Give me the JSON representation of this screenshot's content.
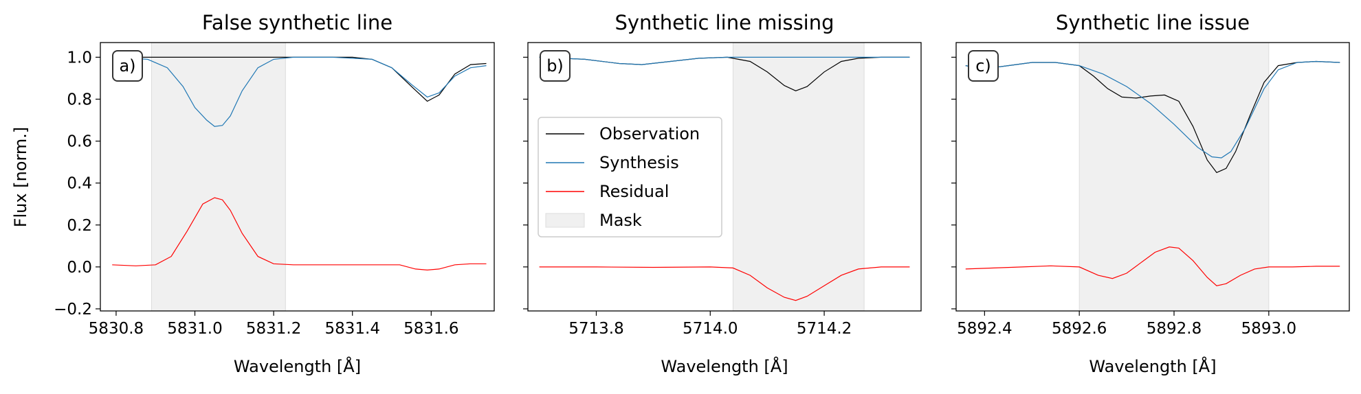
{
  "figure": {
    "ylabel": "Flux [norm.]",
    "legend": {
      "placement": "inside panel b, left-center",
      "entries": [
        {
          "label": "Observation",
          "color": "#000000",
          "kind": "line"
        },
        {
          "label": "Synthesis",
          "color": "#1f77b4",
          "kind": "line"
        },
        {
          "label": "Residual",
          "color": "#ff0000",
          "kind": "line"
        },
        {
          "label": "Mask",
          "color": "#f0f0f0",
          "kind": "patch"
        }
      ]
    }
  },
  "chart_data": [
    {
      "type": "line",
      "panel_label": "a)",
      "title": "False synthetic line",
      "xlabel": "Wavelength [Å]",
      "ylabel": "Flux [norm.]",
      "xlim": [
        5830.76,
        5831.76
      ],
      "ylim": [
        -0.21,
        1.07
      ],
      "xticks": [
        5830.8,
        5831.0,
        5831.2,
        5831.4,
        5831.6
      ],
      "xtick_labels": [
        "5830.8",
        "5831.0",
        "5831.2",
        "5831.4",
        "5831.6"
      ],
      "yticks": [
        -0.2,
        0.0,
        0.2,
        0.4,
        0.6,
        0.8,
        1.0
      ],
      "ytick_labels": [
        "−0.2",
        "0.0",
        "0.2",
        "0.4",
        "0.6",
        "0.8",
        "1.0"
      ],
      "mask": [
        5830.89,
        5831.23
      ],
      "grid": false,
      "series": [
        {
          "name": "Observation",
          "color": "#000000",
          "x": [
            5830.8,
            5830.9,
            5831.0,
            5831.1,
            5831.2,
            5831.3,
            5831.4,
            5831.45,
            5831.5,
            5831.55,
            5831.59,
            5831.62,
            5831.66,
            5831.7,
            5831.74
          ],
          "y": [
            1.0,
            1.0,
            1.0,
            1.0,
            1.0,
            1.0,
            1.0,
            0.99,
            0.95,
            0.86,
            0.79,
            0.82,
            0.92,
            0.965,
            0.97
          ]
        },
        {
          "name": "Synthesis",
          "color": "#1f77b4",
          "x": [
            5830.8,
            5830.88,
            5830.93,
            5830.97,
            5831.0,
            5831.03,
            5831.05,
            5831.07,
            5831.09,
            5831.12,
            5831.16,
            5831.2,
            5831.25,
            5831.35,
            5831.45,
            5831.5,
            5831.55,
            5831.59,
            5831.62,
            5831.66,
            5831.7,
            5831.74
          ],
          "y": [
            1.0,
            0.99,
            0.95,
            0.86,
            0.76,
            0.7,
            0.67,
            0.675,
            0.72,
            0.84,
            0.95,
            0.99,
            1.0,
            1.0,
            0.99,
            0.95,
            0.87,
            0.81,
            0.83,
            0.91,
            0.95,
            0.96
          ]
        },
        {
          "name": "Residual",
          "color": "#ff0000",
          "x": [
            5830.79,
            5830.85,
            5830.9,
            5830.94,
            5830.98,
            5831.02,
            5831.05,
            5831.07,
            5831.09,
            5831.12,
            5831.16,
            5831.2,
            5831.25,
            5831.35,
            5831.45,
            5831.52,
            5831.56,
            5831.59,
            5831.62,
            5831.66,
            5831.7,
            5831.74
          ],
          "y": [
            0.01,
            0.005,
            0.01,
            0.05,
            0.17,
            0.3,
            0.33,
            0.32,
            0.27,
            0.16,
            0.05,
            0.015,
            0.01,
            0.01,
            0.01,
            0.01,
            -0.01,
            -0.015,
            -0.01,
            0.01,
            0.015,
            0.015
          ]
        }
      ]
    },
    {
      "type": "line",
      "panel_label": "b)",
      "title": "Synthetic line missing",
      "xlabel": "Wavelength [Å]",
      "ylabel": "",
      "xlim": [
        5713.68,
        5714.37
      ],
      "ylim": [
        -0.21,
        1.07
      ],
      "xticks": [
        5713.8,
        5714.0,
        5714.2
      ],
      "xtick_labels": [
        "5713.8",
        "5714.0",
        "5714.2"
      ],
      "yticks": [
        -0.2,
        0.0,
        0.2,
        0.4,
        0.6,
        0.8,
        1.0
      ],
      "ytick_labels": [],
      "mask": [
        5714.04,
        5714.27
      ],
      "grid": false,
      "series": [
        {
          "name": "Observation",
          "color": "#000000",
          "x": [
            5713.7,
            5713.78,
            5713.84,
            5713.88,
            5713.93,
            5713.98,
            5714.03,
            5714.07,
            5714.1,
            5714.13,
            5714.15,
            5714.17,
            5714.2,
            5714.23,
            5714.26,
            5714.3,
            5714.35
          ],
          "y": [
            1.0,
            0.99,
            0.97,
            0.965,
            0.98,
            0.995,
            1.0,
            0.98,
            0.93,
            0.865,
            0.84,
            0.86,
            0.93,
            0.98,
            0.995,
            1.0,
            1.0
          ]
        },
        {
          "name": "Synthesis",
          "color": "#1f77b4",
          "x": [
            5713.7,
            5713.78,
            5713.84,
            5713.88,
            5713.93,
            5713.98,
            5714.03,
            5714.1,
            5714.2,
            5714.3,
            5714.35
          ],
          "y": [
            1.0,
            0.99,
            0.97,
            0.965,
            0.98,
            0.995,
            1.0,
            1.0,
            1.0,
            1.0,
            1.0
          ]
        },
        {
          "name": "Residual",
          "color": "#ff0000",
          "x": [
            5713.7,
            5713.8,
            5713.9,
            5714.0,
            5714.04,
            5714.07,
            5714.1,
            5714.13,
            5714.15,
            5714.17,
            5714.2,
            5714.23,
            5714.26,
            5714.3,
            5714.35
          ],
          "y": [
            0.0,
            0.0,
            -0.002,
            0.0,
            -0.005,
            -0.04,
            -0.1,
            -0.145,
            -0.16,
            -0.14,
            -0.09,
            -0.04,
            -0.01,
            0.0,
            0.0
          ]
        }
      ]
    },
    {
      "type": "line",
      "panel_label": "c)",
      "title": "Synthetic line issue",
      "xlabel": "Wavelength [Å]",
      "ylabel": "",
      "xlim": [
        5892.34,
        5893.17
      ],
      "ylim": [
        -0.21,
        1.07
      ],
      "xticks": [
        5892.4,
        5892.6,
        5892.8,
        5893.0
      ],
      "xtick_labels": [
        "5892.4",
        "5892.6",
        "5892.8",
        "5893.0"
      ],
      "yticks": [
        -0.2,
        0.0,
        0.2,
        0.4,
        0.6,
        0.8,
        1.0
      ],
      "ytick_labels": [],
      "mask": [
        5892.6,
        5893.0
      ],
      "grid": false,
      "series": [
        {
          "name": "Observation",
          "color": "#000000",
          "x": [
            5892.36,
            5892.4,
            5892.45,
            5892.5,
            5892.55,
            5892.6,
            5892.63,
            5892.66,
            5892.69,
            5892.72,
            5892.75,
            5892.78,
            5892.81,
            5892.84,
            5892.87,
            5892.89,
            5892.91,
            5892.93,
            5892.96,
            5892.99,
            5893.02,
            5893.06,
            5893.1,
            5893.15
          ],
          "y": [
            0.96,
            0.945,
            0.96,
            0.975,
            0.975,
            0.96,
            0.91,
            0.85,
            0.81,
            0.805,
            0.815,
            0.82,
            0.79,
            0.67,
            0.51,
            0.45,
            0.47,
            0.55,
            0.72,
            0.88,
            0.96,
            0.975,
            0.98,
            0.975
          ]
        },
        {
          "name": "Synthesis",
          "color": "#1f77b4",
          "x": [
            5892.36,
            5892.4,
            5892.45,
            5892.5,
            5892.55,
            5892.6,
            5892.65,
            5892.7,
            5892.75,
            5892.8,
            5892.85,
            5892.88,
            5892.9,
            5892.92,
            5892.95,
            5892.99,
            5893.02,
            5893.06,
            5893.1,
            5893.15
          ],
          "y": [
            0.96,
            0.945,
            0.96,
            0.975,
            0.975,
            0.96,
            0.92,
            0.86,
            0.78,
            0.68,
            0.57,
            0.525,
            0.52,
            0.55,
            0.66,
            0.85,
            0.94,
            0.975,
            0.98,
            0.975
          ]
        },
        {
          "name": "Residual",
          "color": "#ff0000",
          "x": [
            5892.36,
            5892.42,
            5892.48,
            5892.54,
            5892.6,
            5892.64,
            5892.67,
            5892.7,
            5892.73,
            5892.76,
            5892.79,
            5892.81,
            5892.84,
            5892.87,
            5892.89,
            5892.91,
            5892.94,
            5892.97,
            5893.0,
            5893.05,
            5893.1,
            5893.15
          ],
          "y": [
            -0.01,
            -0.005,
            0.0,
            0.005,
            0.0,
            -0.04,
            -0.055,
            -0.03,
            0.02,
            0.07,
            0.095,
            0.09,
            0.03,
            -0.05,
            -0.09,
            -0.08,
            -0.04,
            -0.01,
            0.0,
            0.0,
            0.003,
            0.003
          ]
        }
      ]
    }
  ]
}
